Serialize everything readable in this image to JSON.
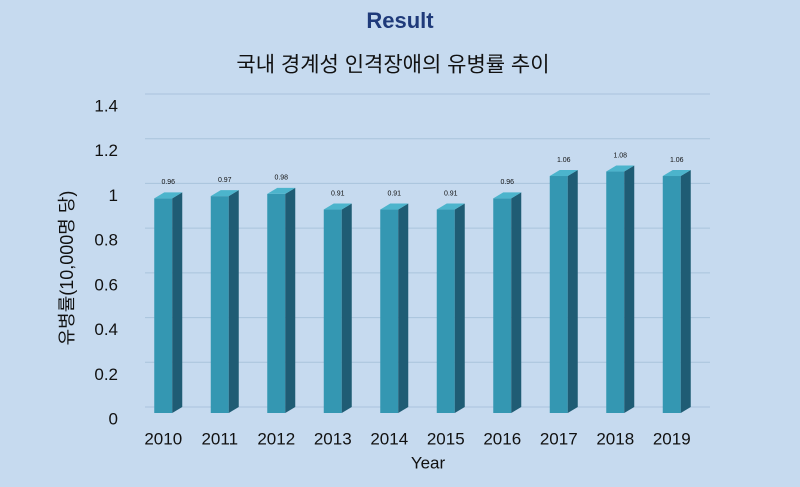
{
  "chart_data": {
    "type": "bar",
    "title": "Result",
    "subtitle": "국내 경계성 인격장애의 유병률 추이",
    "x_label": "Year",
    "y_label": "유병률(10,000명 당)",
    "categories": [
      "2010",
      "2011",
      "2012",
      "2013",
      "2014",
      "2015",
      "2016",
      "2017",
      "2018",
      "2019"
    ],
    "values": [
      0.96,
      0.97,
      0.98,
      0.91,
      0.91,
      0.91,
      0.96,
      1.06,
      1.08,
      1.06
    ],
    "color": "#3497b2",
    "ylim": [
      0,
      1.4
    ],
    "yticks": [
      0,
      0.2,
      0.4,
      0.6,
      0.8,
      1,
      1.2,
      1.4
    ],
    "grid": true
  }
}
